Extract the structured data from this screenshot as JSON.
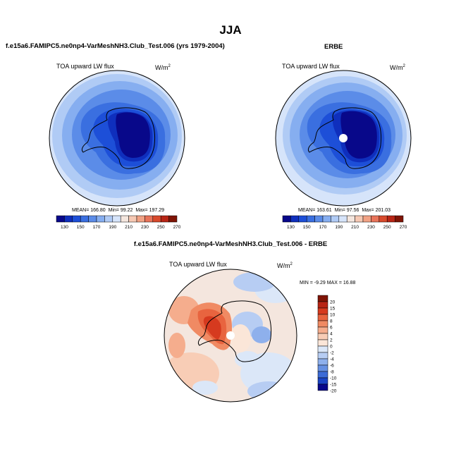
{
  "page": {
    "season_title": "JJA"
  },
  "panels": [
    {
      "title": "f.e15a6.FAMIPC5.ne0np4-VarMeshNH3.Club_Test.006 (yrs 1979-2004)",
      "field_label": "TOA upward LW flux",
      "units_base": "W/m",
      "units_exp": "2",
      "stats": {
        "mean_label": "MEAN=",
        "mean": "166.80",
        "min_label": "Min=",
        "min": "99.22",
        "max_label": "Max=",
        "max": "197.29"
      }
    },
    {
      "title": "ERBE",
      "field_label": "TOA upward LW flux",
      "units_base": "W/m",
      "units_exp": "2",
      "stats": {
        "mean_label": "MEAN=",
        "mean": "163.61",
        "min_label": "Min=",
        "min": "97.56",
        "max_label": "Max=",
        "max": "201.03"
      }
    },
    {
      "title": "f.e15a6.FAMIPC5.ne0np4-VarMeshNH3.Club_Test.006 - ERBE",
      "field_label": "TOA upward LW flux",
      "units_base": "W/m",
      "units_exp": "2",
      "minmax_text": "MIN = -9.29 MAX = 16.88"
    }
  ],
  "abs_colorbar": {
    "colors": [
      "#08088a",
      "#0f2fbd",
      "#1d4fd8",
      "#3a6fe0",
      "#5b8ce8",
      "#86aef0",
      "#b0cbf5",
      "#d6e4fa",
      "#f4e6de",
      "#f6c9b4",
      "#f1a285",
      "#e8745a",
      "#d84a2c",
      "#b82515",
      "#7f1405"
    ],
    "labels": [
      "130",
      "150",
      "170",
      "190",
      "210",
      "230",
      "250",
      "270"
    ]
  },
  "diff_colorbar": {
    "colors": [
      "#7f1405",
      "#b82515",
      "#d63a1f",
      "#e8643f",
      "#f08a63",
      "#f5ad8d",
      "#f8cdb6",
      "#fbe6d8",
      "#dbe7f8",
      "#b7cdf3",
      "#8eb0ec",
      "#6690e2",
      "#3c6bd6",
      "#1a44c4",
      "#08088a"
    ],
    "labels": [
      "20",
      "15",
      "10",
      "8",
      "6",
      "4",
      "2",
      "0",
      "-2",
      "-4",
      "-6",
      "-8",
      "-10",
      "-15",
      "-20"
    ]
  }
}
